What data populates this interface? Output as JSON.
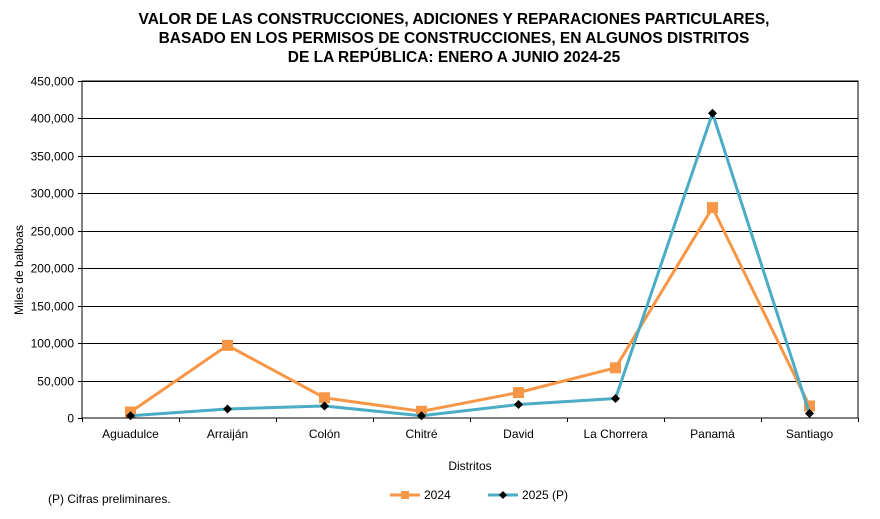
{
  "chart_data": {
    "type": "line",
    "title": [
      "VALOR DE LAS CONSTRUCCIONES, ADICIONES Y REPARACIONES PARTICULARES,",
      "BASADO EN LOS PERMISOS DE CONSTRUCCIONES, EN ALGUNOS DISTRITOS",
      "DE LA REPÚBLICA: ENERO A JUNIO 2024-25"
    ],
    "xlabel": "Distritos",
    "ylabel": "Miles de balboas",
    "ylim": [
      0,
      450000
    ],
    "yticks": [
      "0",
      "50,000",
      "100,000",
      "150,000",
      "200,000",
      "250,000",
      "300,000",
      "350,000",
      "400,000",
      "450,000"
    ],
    "ytick_values": [
      0,
      50000,
      100000,
      150000,
      200000,
      250000,
      300000,
      350000,
      400000,
      450000
    ],
    "categories": [
      "Aguadulce",
      "Arraiján",
      "Colón",
      "Chitré",
      "David",
      "La Chorrera",
      "Panamá",
      "Santiago"
    ],
    "series": [
      {
        "name": "2024",
        "color": "#F79646",
        "marker": "square",
        "values": [
          8000,
          97000,
          27000,
          9000,
          34000,
          67000,
          281000,
          16000
        ]
      },
      {
        "name": "2025 (P)",
        "color": "#4BACC6",
        "marker": "diamond",
        "values": [
          3000,
          12000,
          16000,
          3000,
          18000,
          26000,
          407000,
          6000
        ]
      }
    ],
    "grid": true,
    "legend_position": "bottom",
    "footnote": "(P) Cifras  preliminares."
  }
}
